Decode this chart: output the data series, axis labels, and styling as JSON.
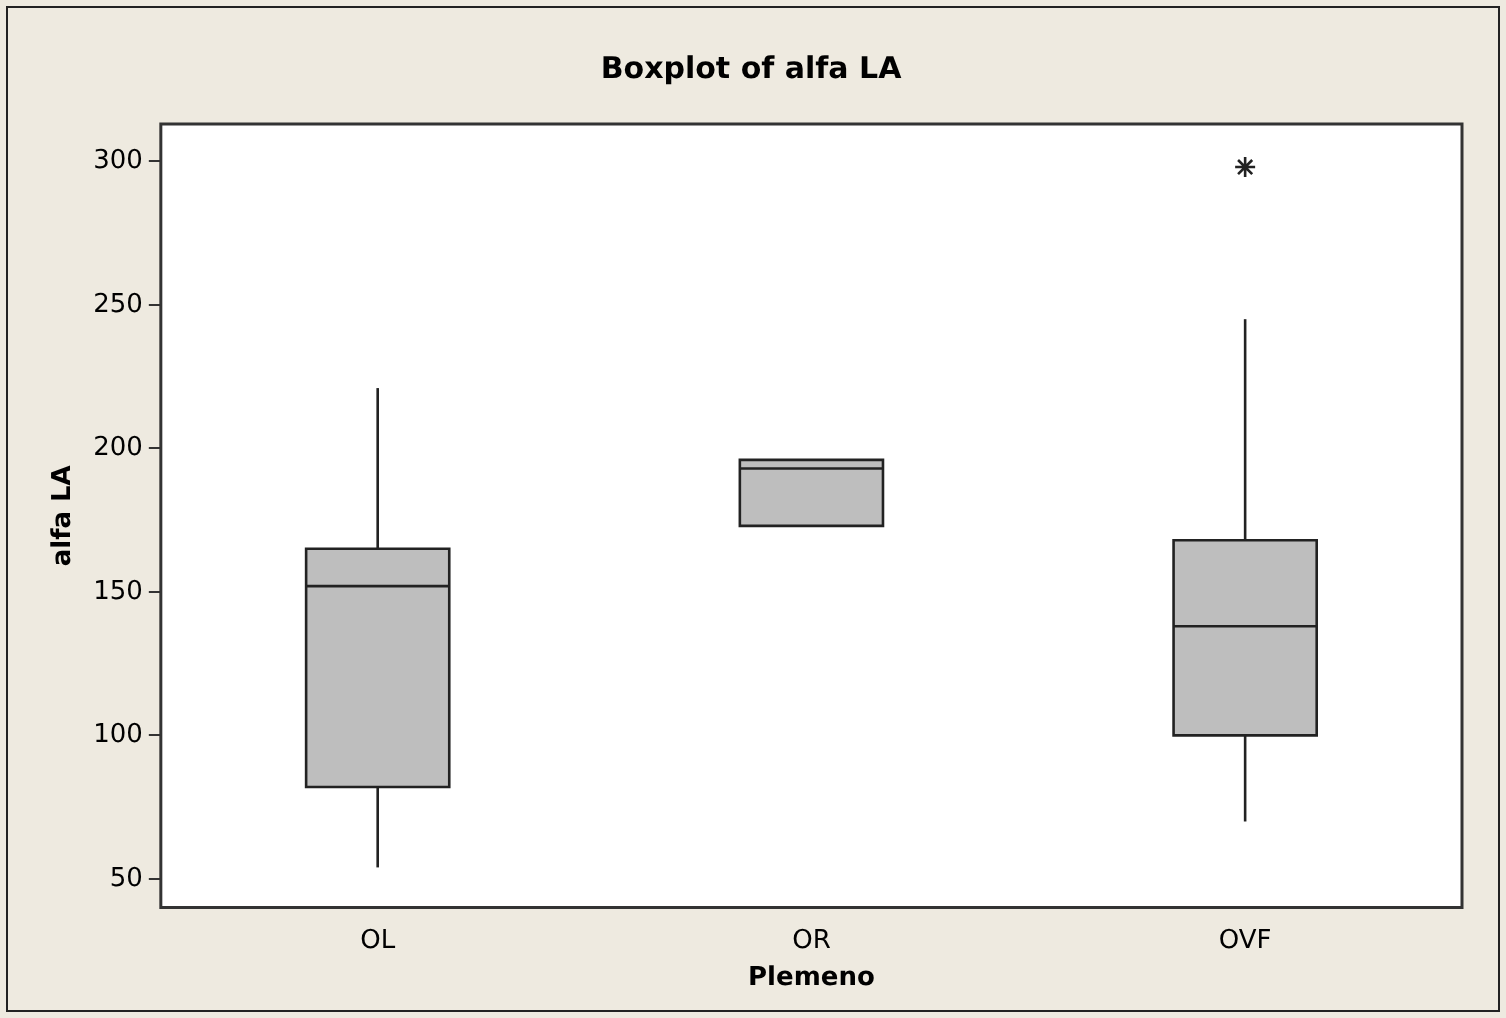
{
  "chart_data": {
    "type": "box",
    "title": "Boxplot of alfa LA",
    "xlabel": "Plemeno",
    "ylabel": "alfa LA",
    "categories": [
      "OL",
      "OR",
      "OVF"
    ],
    "color": "#bebebe",
    "ylim": [
      40,
      313
    ],
    "yticks": [
      50,
      100,
      150,
      200,
      250,
      300
    ],
    "grid": false,
    "legend": false,
    "boxes": [
      {
        "low": 54,
        "q1": 82,
        "median": 152,
        "q3": 165,
        "high": 221
      },
      {
        "low": 173,
        "q1": 173,
        "median": 193,
        "q3": 196,
        "high": 196
      },
      {
        "low": 70,
        "q1": 100,
        "median": 138,
        "q3": 168,
        "high": 245,
        "outliers": [
          298
        ]
      }
    ]
  }
}
